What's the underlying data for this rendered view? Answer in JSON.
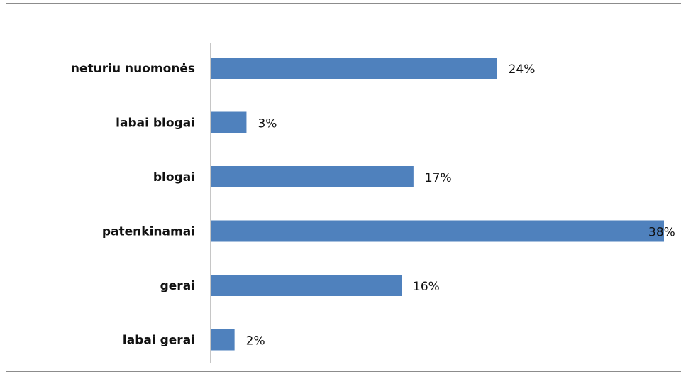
{
  "chart_data": {
    "type": "bar",
    "orientation": "horizontal",
    "categories": [
      "neturiu nuomonės",
      "labai blogai",
      "blogai",
      "patenkinamai",
      "gerai",
      "labai gerai"
    ],
    "values": [
      24,
      3,
      17,
      38,
      16,
      2
    ],
    "value_labels": [
      "24%",
      "3%",
      "17%",
      "38%",
      "16%",
      "2%"
    ],
    "unit": "%",
    "xlim": [
      0,
      38
    ],
    "bar_color": "#4f81bd",
    "grid": false,
    "legend": "none"
  }
}
